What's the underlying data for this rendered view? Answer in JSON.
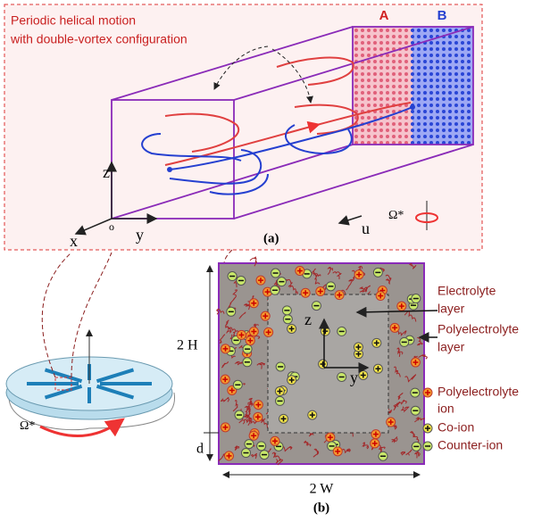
{
  "panel_a": {
    "caption": [
      "Periodic helical motion",
      "with double-vortex configuration"
    ],
    "region_a": "A",
    "region_b": "B",
    "axis_z": "z",
    "axis_x": "x",
    "origin": "o",
    "axis_y": "y",
    "flow": "u",
    "rotation": "Ω*",
    "label": "(a)"
  },
  "panel_b": {
    "height": "2 H",
    "layer_thickness": "d",
    "width": "2 W",
    "axis_z": "z",
    "axis_y": "y",
    "electrolyte_layer": [
      "Electrolyte",
      "layer"
    ],
    "polyelectrolyte_layer": [
      "Polyelectrolyte",
      "layer"
    ],
    "legend": {
      "polyelectrolyte_ion": [
        "Polyelectrolyte",
        "ion"
      ],
      "co_ion": "Co-ion",
      "counter_ion": "Counter-ion"
    },
    "label": "(b)"
  },
  "disk": {
    "rotation": "Ω*"
  }
}
